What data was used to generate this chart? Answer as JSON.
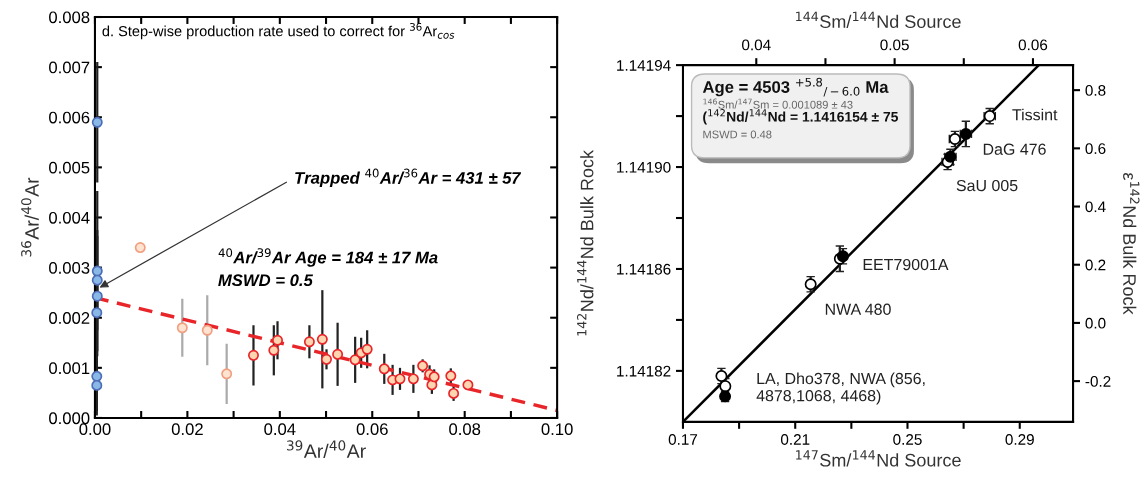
{
  "chart_data": [
    {
      "type": "scatter",
      "title": "d. Step-wise production rate used to correct for $^{36}$Ar$_{cos}$",
      "xlabel": "$^{39}$Ar/$^{40}$Ar",
      "ylabel": "$^{36}$Ar/$^{40}$Ar",
      "xlim": [
        0,
        0.1
      ],
      "xticks": [
        {
          "value": 0,
          "label": "0.00"
        },
        {
          "value": 0.01,
          "label": null
        },
        {
          "value": 0.02,
          "label": "0.02"
        },
        {
          "value": 0.03,
          "label": null
        },
        {
          "value": 0.04,
          "label": "0.04"
        },
        {
          "value": 0.05,
          "label": null
        },
        {
          "value": 0.06,
          "label": "0.06"
        },
        {
          "value": 0.07,
          "label": null
        },
        {
          "value": 0.08,
          "label": "0.08"
        },
        {
          "value": 0.09,
          "label": null
        },
        {
          "value": 0.1,
          "label": "0.10"
        }
      ],
      "ylim": [
        0,
        0.008
      ],
      "yticks": [
        {
          "value": 0,
          "label": "0.000"
        },
        {
          "value": 0.001,
          "label": "0.001"
        },
        {
          "value": 0.002,
          "label": "0.002"
        },
        {
          "value": 0.003,
          "label": "0.003"
        },
        {
          "value": 0.004,
          "label": "0.004"
        },
        {
          "value": 0.005,
          "label": "0.005"
        },
        {
          "value": 0.006,
          "label": "0.006"
        },
        {
          "value": 0.007,
          "label": "0.007"
        },
        {
          "value": 0.008,
          "label": "0.008"
        }
      ],
      "grid": false,
      "legend": false,
      "annotations": [
        {
          "text": "Trapped $^{40}$Ar/$^{36}$Ar = 431 ± 57",
          "x": 0.001,
          "y": 0.0026
        },
        "$^{40}$Ar/$^{39}$Ar Age = 184 ± 17 Ma",
        "MSWD = 0.5"
      ],
      "series": [
        {
          "type": "scatter",
          "marker": "circle",
          "color": "#8ab8e6",
          "x": [
            0.0005,
            0.0005,
            0.0005,
            0.0005,
            0.0004,
            0.0004,
            0.0004
          ],
          "values": [
            0.0059,
            0.00293,
            0.00275,
            0.00243,
            0.0021,
            0.00083,
            0.00065
          ],
          "errors": [
            0.0012,
            0.0016,
            0.001,
            0.0012,
            0.0008,
            0.0007,
            0.0006
          ]
        },
        {
          "type": "scatter",
          "marker": "circle",
          "color": "#fde3d0",
          "x": [
            0.0098,
            0.0189,
            0.0243,
            0.0285
          ],
          "values": [
            0.0034,
            0.0018,
            0.00175,
            0.00088
          ],
          "errors": [
            null,
            0.00058,
            0.0007,
            0.0006
          ]
        },
        {
          "type": "scatter",
          "marker": "circle",
          "color": "#fdd5b0",
          "x": [
            0.0343,
            0.0387,
            0.0395,
            0.0464,
            0.0492,
            0.0501,
            0.0525,
            0.0563,
            0.0576,
            0.0589,
            0.0626,
            0.0644,
            0.066,
            0.0689,
            0.0709,
            0.0724,
            0.0729,
            0.0734,
            0.077,
            0.0776,
            0.0807
          ],
          "values": [
            0.00125,
            0.00135,
            0.00155,
            0.00152,
            0.00157,
            0.00117,
            0.00127,
            0.00116,
            0.0013,
            0.00137,
            0.00098,
            0.00076,
            0.00078,
            0.00078,
            0.00104,
            0.00087,
            0.00066,
            0.00082,
            0.00084,
            0.00049,
            0.00066
          ],
          "errors": [
            0.0006,
            0.0005,
            0.00038,
            0.00033,
            0.00098,
            0.0002,
            0.00063,
            0.00046,
            0.0003,
            0.00038,
            0.0003,
            0.0003,
            0.00022,
            0.00028,
            0.00013,
            0.00018,
            0.00018,
            0.00015,
            0.00015,
            0.00015,
            null
          ]
        },
        {
          "type": "line",
          "color": "#e8262a",
          "line_style": "dashed",
          "x": [
            0,
            0.1
          ],
          "values": [
            0.0024,
            0.00015
          ]
        }
      ]
    },
    {
      "type": "scatter",
      "xlabel": "$^{147}$Sm/$^{144}$Nd Source",
      "x2label": "$^{144}$Sm/$^{144}$Nd Source",
      "ylabel": "$^{142}$Nd/$^{144}$Nd Bulk Rock",
      "y2label": "ε$^{142}$Nd Bulk Rock",
      "xlim": [
        0.17,
        0.309
      ],
      "xticks": [
        0.17,
        {
          "value": 0.19,
          "label": null
        },
        0.21,
        {
          "value": 0.23,
          "label": null
        },
        0.25,
        {
          "value": 0.27,
          "label": null
        },
        0.29
      ],
      "x2lim": [
        0.0347,
        0.0629
      ],
      "x2ticks": [
        0.04,
        {
          "value": 0.045,
          "label": null
        },
        0.05,
        {
          "value": 0.055,
          "label": null
        },
        0.06
      ],
      "ylim": [
        1.1418,
        1.14194
      ],
      "yticks": [
        {
          "value": 1.14182,
          "label": "1.14182"
        },
        {
          "value": 1.14184,
          "label": null
        },
        {
          "value": 1.14186,
          "label": "1.14186"
        },
        {
          "value": 1.14188,
          "label": null
        },
        {
          "value": 1.1419,
          "label": "1.14190"
        },
        {
          "value": 1.14192,
          "label": null
        },
        {
          "value": 1.14194,
          "label": "1.14194"
        }
      ],
      "y2lim": [
        -0.34,
        0.886
      ],
      "y2ticks": [
        {
          "value": -0.2,
          "label": "-0.2"
        },
        {
          "value": 0,
          "label": "0.0"
        },
        0.2,
        0.4,
        0.6,
        0.8
      ],
      "grid": false,
      "legend": false,
      "annotations": [
        "Age = 4503 $^{+5.8}$$_{/−6.0}$ Ma",
        "$^{146}$Sm/$^{147}$Sm = 0.001089 ± 43",
        "($^{142}$Nd/$^{144}$Nd = 1.1416154 ± 75",
        "MSWD = 0.48",
        {
          "text": "Tissint",
          "x": 0.2793,
          "y": 1.14192
        },
        {
          "text": "DaG 476",
          "x": 0.2708,
          "y": 1.141913
        },
        {
          "text": "SaU 005",
          "x": 0.2643,
          "y": 1.141902
        },
        {
          "text": "EET79001A",
          "x": 0.227,
          "y": 1.141865
        },
        {
          "text": "NWA 480",
          "x": 0.2155,
          "y": 1.141854
        },
        {
          "text": "LA, Dho378, NWA (856,\n4878,1068, 4468)",
          "x": 0.1837,
          "y": 1.141818
        }
      ],
      "series": [
        {
          "type": "line",
          "color": "#000000",
          "line_style": "solid",
          "x": [
            0.17,
            0.2968
          ],
          "values": [
            1.1418,
            1.14194
          ]
        },
        {
          "type": "scatter",
          "marker": "circle",
          "color": "#ffffff",
          "x": [
            0.1837,
            0.1851,
            0.2155,
            0.2259,
            0.2643,
            0.2669,
            0.2793
          ],
          "values": [
            1.141818,
            1.141814,
            1.141854,
            1.141864,
            1.141902,
            1.141911,
            1.14192
          ],
          "errors": [
            3e-06,
            3e-06,
            3e-06,
            5e-06,
            3e-06,
            3e-06,
            3e-06
          ],
          "xerrors": [
            null,
            null,
            null,
            null,
            0.002,
            0.002,
            0.002
          ]
        },
        {
          "type": "scatter",
          "marker": "circle",
          "color": "#000000",
          "x": [
            0.185,
            0.227,
            0.2653,
            0.2708
          ],
          "values": [
            1.14181,
            1.141865,
            1.141904,
            1.141913
          ],
          "errors": [
            2e-06,
            3e-06,
            3e-06,
            5e-06
          ],
          "xerrors": [
            null,
            null,
            0.002,
            0.002
          ]
        }
      ]
    }
  ]
}
